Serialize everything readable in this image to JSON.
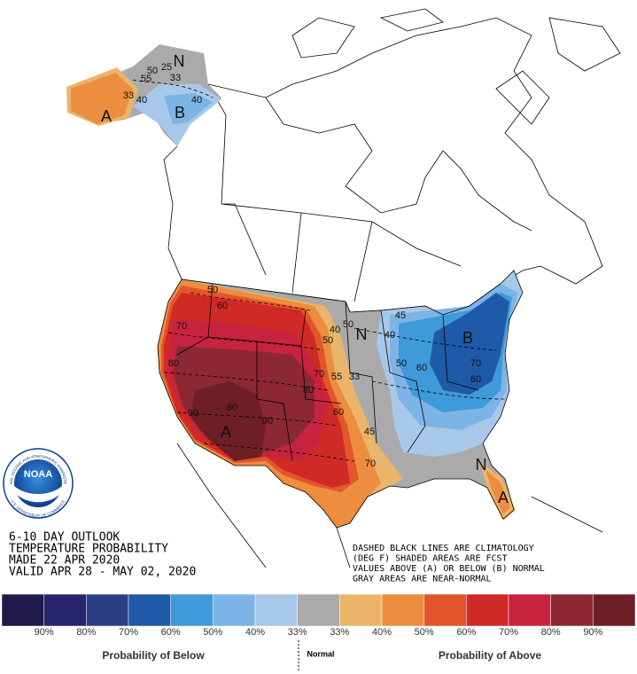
{
  "map": {
    "title_lines": [
      "6-10 DAY OUTLOOK",
      "TEMPERATURE PROBABILITY",
      "MADE  22 APR 2020",
      "VALID  APR 28 - MAY 02, 2020"
    ],
    "notes": [
      "DASHED BLACK LINES ARE CLIMATOLOGY",
      "(DEG F) SHADED AREAS ARE FCST",
      "VALUES ABOVE (A) OR BELOW (B) NORMAL",
      "GRAY AREAS ARE NEAR-NORMAL"
    ],
    "logo": {
      "name": "NOAA",
      "ring_top": "NATIONAL OCEANIC AND ATMOSPHERIC ADMINISTRATION",
      "ring_bottom": "U.S. DEPARTMENT OF COMMERCE"
    },
    "labels": [
      "N",
      "B",
      "A",
      "33",
      "40",
      "50",
      "55",
      "25",
      "33",
      "40",
      "A",
      "B",
      "N",
      "N",
      "A",
      "50",
      "60",
      "70",
      "80",
      "90",
      "60",
      "90",
      "70",
      "80",
      "55",
      "60",
      "50",
      "40",
      "33",
      "45",
      "70",
      "50",
      "40",
      "45",
      "50",
      "60",
      "70",
      "60"
    ]
  },
  "legend": {
    "colors": [
      "#1f1a4a",
      "#28246a",
      "#2b3f85",
      "#1e5aa8",
      "#3e9ad8",
      "#7cb4e6",
      "#a8c8ea",
      "#aaaaaa",
      "#eab56a",
      "#ec8d3f",
      "#e3552a",
      "#cf2a26",
      "#c8233e",
      "#8c2832",
      "#6e1f25"
    ],
    "ticks": [
      "90%",
      "80%",
      "70%",
      "60%",
      "50%",
      "40%",
      "33%",
      "33%",
      "40%",
      "50%",
      "60%",
      "70%",
      "80%",
      "90%"
    ],
    "below": "Probability of Below",
    "normal": "Normal",
    "above": "Probability of Above"
  }
}
